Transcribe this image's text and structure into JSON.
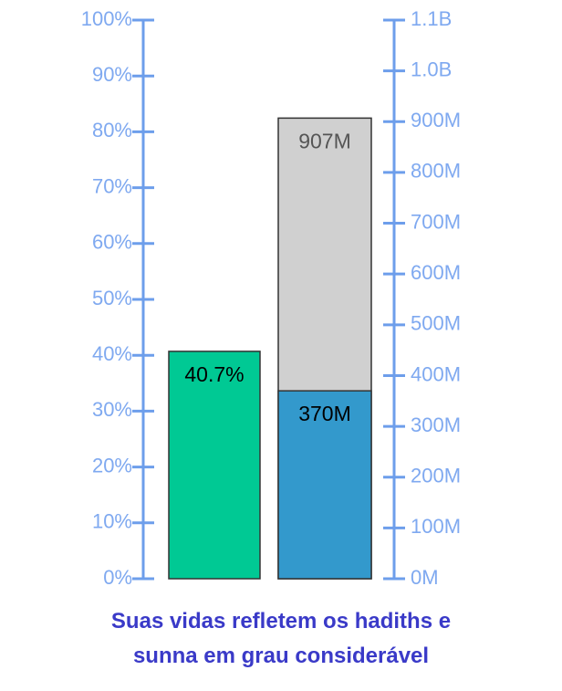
{
  "chart_data": {
    "type": "bar",
    "title": "Suas vidas refletem os hadiths e sunna em grau considerável",
    "ylim": [
      0,
      100
    ],
    "yticks": [
      {
        "value": 0,
        "label": "0%"
      },
      {
        "value": 10,
        "label": "10%"
      },
      {
        "value": 20,
        "label": "20%"
      },
      {
        "value": 30,
        "label": "30%"
      },
      {
        "value": 40,
        "label": "40%"
      },
      {
        "value": 50,
        "label": "50%"
      },
      {
        "value": 60,
        "label": "60%"
      },
      {
        "value": 70,
        "label": "70%"
      },
      {
        "value": 80,
        "label": "80%"
      },
      {
        "value": 90,
        "label": "90%"
      },
      {
        "value": 100,
        "label": "100%"
      }
    ],
    "y2lim": [
      0,
      1100000000
    ],
    "y2ticks": [
      {
        "value": 0,
        "label": "0M"
      },
      {
        "value": 100000000,
        "label": "100M"
      },
      {
        "value": 200000000,
        "label": "200M"
      },
      {
        "value": 300000000,
        "label": "300M"
      },
      {
        "value": 400000000,
        "label": "400M"
      },
      {
        "value": 500000000,
        "label": "500M"
      },
      {
        "value": 600000000,
        "label": "600M"
      },
      {
        "value": 700000000,
        "label": "700M"
      },
      {
        "value": 800000000,
        "label": "800M"
      },
      {
        "value": 900000000,
        "label": "900M"
      },
      {
        "value": 1000000000,
        "label": "1.0B"
      },
      {
        "value": 1100000000,
        "label": "1.1B"
      }
    ],
    "series": [
      {
        "color": "#00c994",
        "values": [
          40.7
        ],
        "value_labels": [
          "40.7%"
        ],
        "label_color": "#000000"
      },
      {
        "color": "#d0d0d0",
        "values": [
          907000000
        ],
        "value_labels": [
          "907M"
        ],
        "axis": "y2",
        "label_color": "#555555"
      },
      {
        "color": "#3399cc",
        "values": [
          370000000
        ],
        "value_labels": [
          "370M"
        ],
        "axis": "y2",
        "label_color": "#000000"
      }
    ]
  }
}
